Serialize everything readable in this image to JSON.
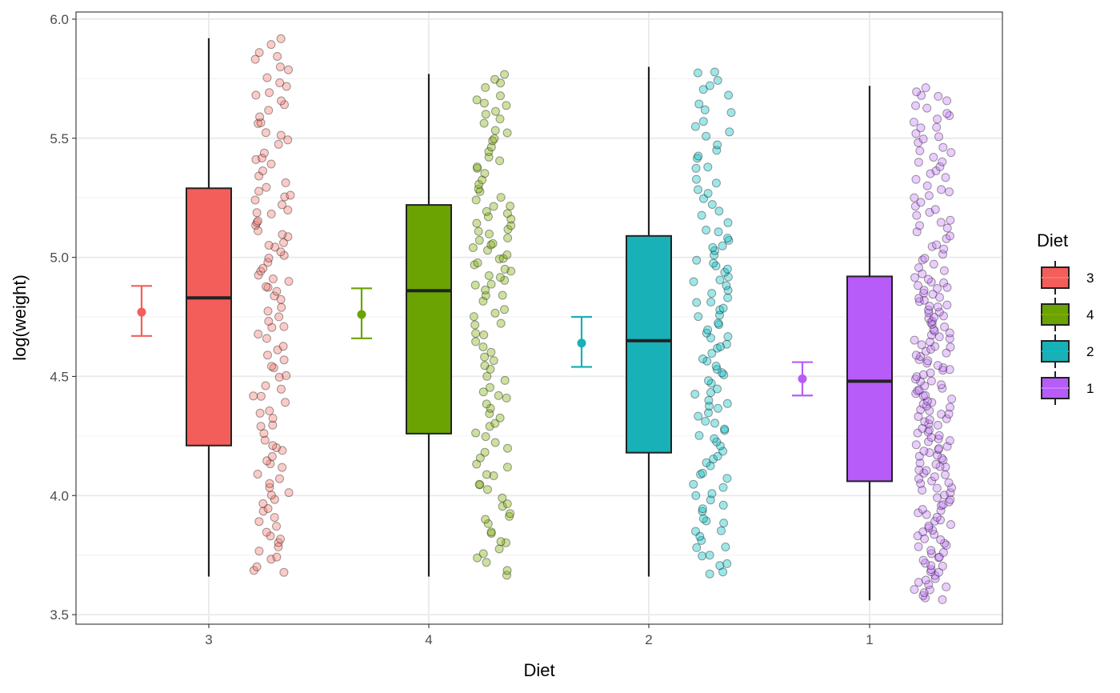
{
  "chart_data": {
    "type": "box",
    "title": "",
    "xlabel": "Diet",
    "ylabel": "log(weight)",
    "categories": [
      "3",
      "4",
      "2",
      "1"
    ],
    "ylim": [
      3.46,
      6.03
    ],
    "yticks": [
      3.5,
      4.0,
      4.5,
      5.0,
      5.5,
      6.0
    ],
    "ytick_labels": [
      "3.5",
      "4.0",
      "4.5",
      "5.0",
      "5.5",
      "6.0"
    ],
    "grid": true,
    "legend": {
      "title": "Diet",
      "position": "right",
      "entries": [
        "3",
        "4",
        "2",
        "1"
      ]
    },
    "colors": {
      "3": "#F8766D",
      "4": "#7CAE00",
      "2": "#00BFC4",
      "1": "#C77CFF"
    },
    "boxplots": [
      {
        "diet": "3",
        "min": 3.66,
        "q1": 4.21,
        "median": 4.83,
        "q3": 5.29,
        "max": 5.92,
        "fill": "#F35E5A"
      },
      {
        "diet": "4",
        "min": 3.66,
        "q1": 4.26,
        "median": 4.86,
        "q3": 5.22,
        "max": 5.77,
        "fill": "#6BA303"
      },
      {
        "diet": "2",
        "min": 3.66,
        "q1": 4.18,
        "median": 4.65,
        "q3": 5.09,
        "max": 5.8,
        "fill": "#17B1B7"
      },
      {
        "diet": "1",
        "min": 3.56,
        "q1": 4.06,
        "median": 4.48,
        "q3": 4.92,
        "max": 5.72,
        "fill": "#B75CF8"
      }
    ],
    "mean_ci": [
      {
        "diet": "3",
        "mean": 4.77,
        "lower": 4.67,
        "upper": 4.88,
        "color": "#F35E5A"
      },
      {
        "diet": "4",
        "mean": 4.76,
        "lower": 4.66,
        "upper": 4.87,
        "color": "#6BA303"
      },
      {
        "diet": "2",
        "mean": 4.64,
        "lower": 4.54,
        "upper": 4.75,
        "color": "#17B1B7"
      },
      {
        "diet": "1",
        "mean": 4.49,
        "lower": 4.42,
        "upper": 4.56,
        "color": "#B75CF8"
      }
    ],
    "jitter_points": [
      {
        "diet": "3",
        "n": 120,
        "min": 3.66,
        "q1": 4.21,
        "median": 4.83,
        "q3": 5.29,
        "max": 5.92,
        "seed": 3
      },
      {
        "diet": "4",
        "n": 118,
        "min": 3.66,
        "q1": 4.26,
        "median": 4.86,
        "q3": 5.22,
        "max": 5.77,
        "seed": 4
      },
      {
        "diet": "2",
        "n": 120,
        "min": 3.66,
        "q1": 4.18,
        "median": 4.65,
        "q3": 5.09,
        "max": 5.8,
        "seed": 2
      },
      {
        "diet": "1",
        "n": 220,
        "min": 3.56,
        "q1": 4.06,
        "median": 4.48,
        "q3": 4.92,
        "max": 5.72,
        "seed": 1
      }
    ]
  }
}
